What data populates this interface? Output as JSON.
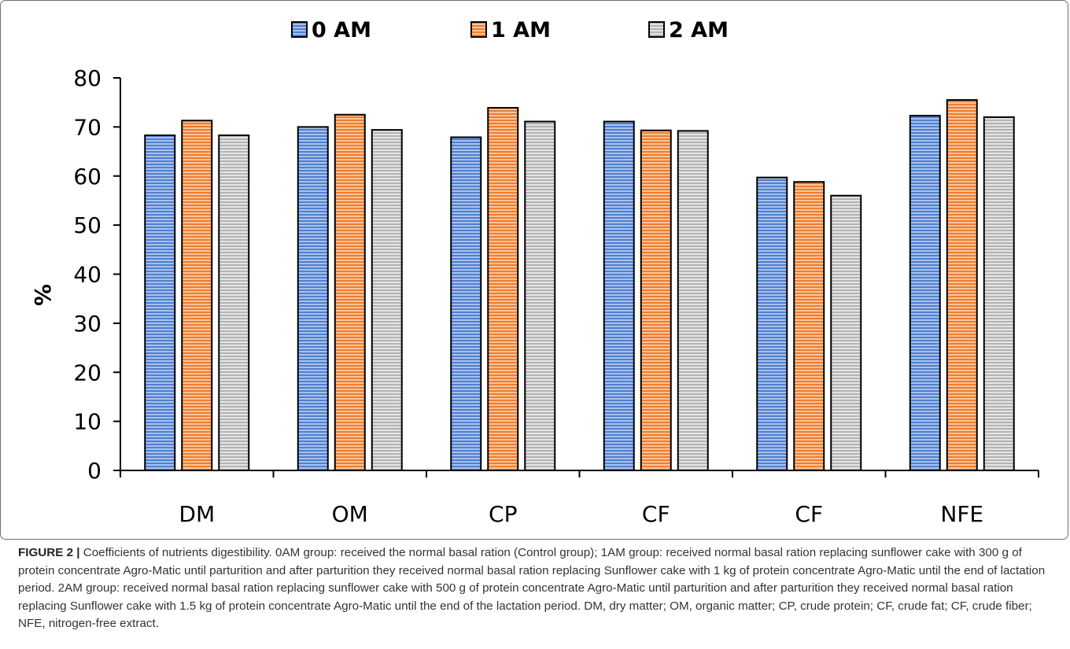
{
  "chart_data": {
    "type": "bar",
    "categories": [
      "DM",
      "OM",
      "CP",
      "CF",
      "CF",
      "NFE"
    ],
    "series": [
      {
        "name": "0 AM",
        "values": [
          68.3,
          70.0,
          67.9,
          71.1,
          59.7,
          72.3
        ],
        "color": "#5b8bd5"
      },
      {
        "name": "1 AM",
        "values": [
          71.3,
          72.5,
          73.9,
          69.3,
          58.8,
          75.5
        ],
        "color": "#f08a3c"
      },
      {
        "name": "2 AM",
        "values": [
          68.3,
          69.4,
          71.1,
          69.2,
          56.0,
          72.0
        ],
        "color": "#bdbdbd"
      }
    ],
    "ylabel": "%",
    "xlabel": "",
    "ylim": [
      0,
      80
    ],
    "yticks": [
      0,
      10,
      20,
      30,
      40,
      50,
      60,
      70,
      80
    ],
    "grid": false,
    "legend": "top-center"
  },
  "caption": {
    "label": "FIGURE 2 |",
    "text": "Coefficients of nutrients digestibility. 0AM group: received the normal basal ration (Control group); 1AM group: received normal basal ration replacing sunflower cake with 300 g of protein concentrate Agro-Matic until parturition and after parturition they received normal basal ration replacing Sunflower cake with 1 kg of protein concentrate Agro-Matic until the end of lactation period. 2AM group: received normal basal ration replacing sunflower cake with 500 g of protein concentrate Agro-Matic until parturition and after parturition they received normal basal ration replacing Sunflower cake with 1.5 kg of protein concentrate Agro-Matic until the end of the lactation period. DM, dry matter; OM, organic matter; CP, crude protein; CF, crude fat; CF, crude fiber; NFE, nitrogen-free extract."
  }
}
